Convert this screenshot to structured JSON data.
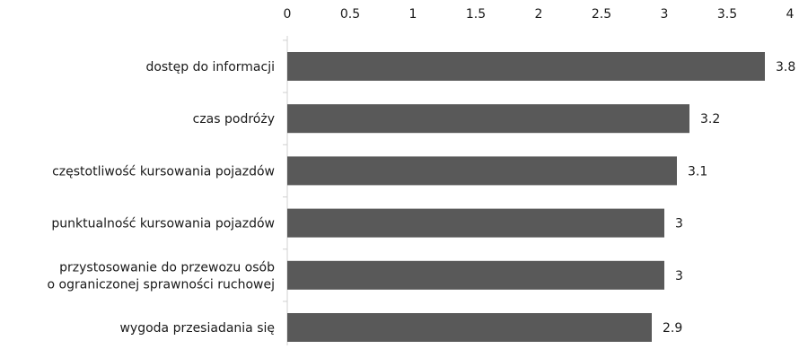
{
  "chart_data": {
    "type": "bar",
    "orientation": "horizontal",
    "categories": [
      [
        "dostęp do informacji"
      ],
      [
        "czas podróży"
      ],
      [
        "częstotliwość kursowania pojazdów"
      ],
      [
        "punktualność kursowania pojazdów"
      ],
      [
        "przystosowanie do przewozu osób",
        "o ograniczonej sprawności ruchowej"
      ],
      [
        "wygoda przesiadania się"
      ]
    ],
    "values": [
      3.8,
      3.2,
      3.1,
      3,
      3,
      2.9
    ],
    "value_labels": [
      "3.8",
      "3.2",
      "3.1",
      "3",
      "3",
      "2.9"
    ],
    "xlim": [
      0,
      4
    ],
    "x_ticks": [
      0,
      0.5,
      1,
      1.5,
      2,
      2.5,
      3,
      3.5,
      4
    ],
    "x_tick_labels": [
      "0",
      "0.5",
      "1",
      "1.5",
      "2",
      "2.5",
      "3",
      "3.5",
      "4"
    ],
    "axis_position": "top",
    "grid": false,
    "legend": "none",
    "bar_color": "#595959",
    "title": "",
    "xlabel": "",
    "ylabel": ""
  }
}
